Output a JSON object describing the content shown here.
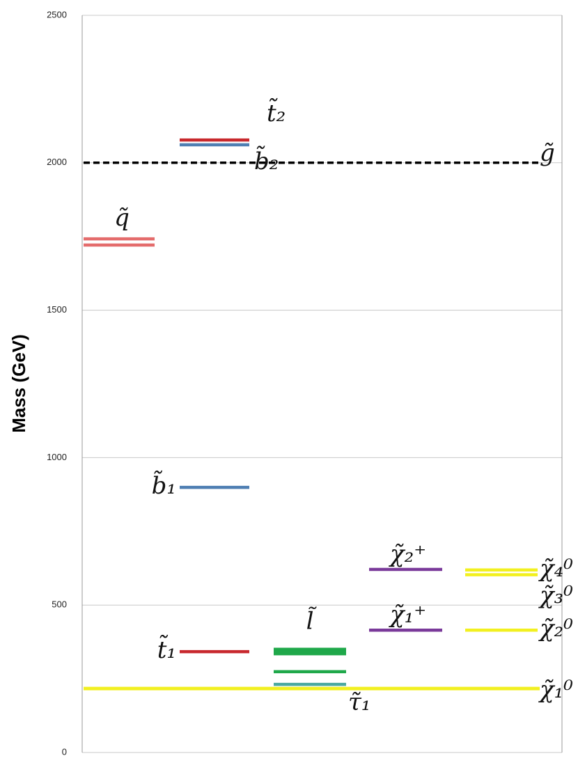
{
  "chart_data": {
    "type": "spectrum",
    "y_label": "Mass (GeV)",
    "ylim": [
      0,
      2500
    ],
    "yticks": [
      0,
      500,
      1000,
      1500,
      2000,
      2500
    ],
    "grid": true,
    "series": [
      {
        "values": [
          1742,
          1721
        ],
        "labels": [
          "q̃",
          null
        ],
        "colors": [
          "#e46c6c",
          "#e46c6c"
        ]
      },
      {
        "values": [
          2077,
          2061,
          899,
          342
        ],
        "labels": [
          "t̃₂",
          "b̃₂",
          "b̃₁",
          "t̃₁"
        ],
        "colors": [
          "#c8282d",
          "#4f7fb3",
          "#4f7fb3",
          "#c8282d"
        ]
      },
      {
        "values": [
          350,
          345,
          340,
          335,
          274,
          231
        ],
        "labels": [
          "l̃",
          null,
          null,
          null,
          null,
          "τ̃₁"
        ],
        "colors": [
          "#1fa84a",
          "#1fa84a",
          "#1fa84a",
          "#1fa84a",
          "#1fa84a",
          "#4aa8a0"
        ]
      },
      {
        "values": [
          621,
          415
        ],
        "labels": [
          "χ̃₂⁺",
          "χ̃₁⁺"
        ],
        "colors": [
          "#7a3a9a",
          "#7a3a9a"
        ]
      },
      {
        "values": [
          619,
          603,
          415
        ],
        "labels": [
          "χ̃₄⁰",
          "χ̃₃⁰",
          "χ̃₂⁰"
        ],
        "colors": [
          "#f2f020",
          "#f2f020",
          "#f2f020"
        ]
      }
    ],
    "hlines": [
      {
        "label": "χ̃₁⁰",
        "value": 217,
        "color": "#f2f020",
        "dashed": false
      },
      {
        "label": "g̃",
        "value": 2000,
        "color": "#000000",
        "dashed": true
      }
    ]
  }
}
